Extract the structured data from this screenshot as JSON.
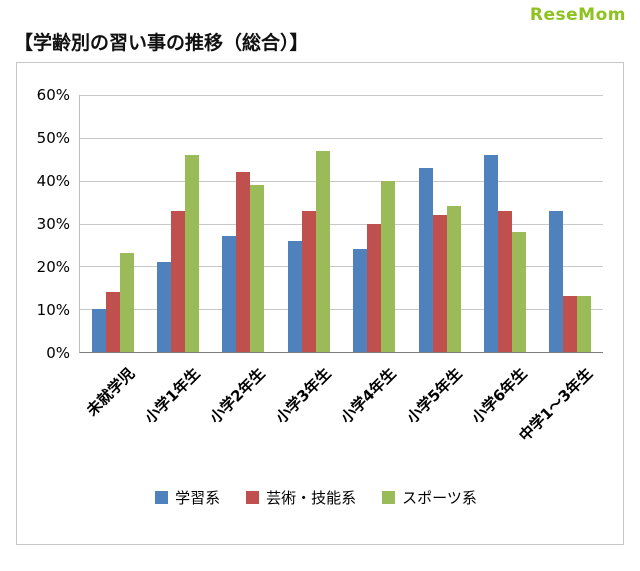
{
  "page": {
    "logo": "ReseMom",
    "title": "【学齢別の習い事の推移（総合）】"
  },
  "chart_data": {
    "type": "bar",
    "title": "学齢別の習い事の推移（総合）",
    "categories": [
      "未就学児",
      "小学1年生",
      "小学2年生",
      "小学3年生",
      "小学4年生",
      "小学5年生",
      "小学6年生",
      "中学1～3年生"
    ],
    "series": [
      {
        "name": "学習系",
        "color": "#4f81bd",
        "values": [
          10,
          21,
          27,
          26,
          24,
          43,
          46,
          33
        ]
      },
      {
        "name": "芸術・技能系",
        "color": "#c0504d",
        "values": [
          14,
          33,
          42,
          33,
          30,
          32,
          33,
          13
        ]
      },
      {
        "name": "スポーツ系",
        "color": "#9bbb59",
        "values": [
          23,
          46,
          39,
          47,
          40,
          34,
          28,
          13
        ]
      }
    ],
    "xlabel": "",
    "ylabel": "",
    "ylim": [
      0,
      60
    ],
    "ytick_step": 10,
    "ytick_labels": [
      "0%",
      "10%",
      "20%",
      "30%",
      "40%",
      "50%",
      "60%"
    ],
    "grid": true,
    "legend_position": "bottom"
  }
}
